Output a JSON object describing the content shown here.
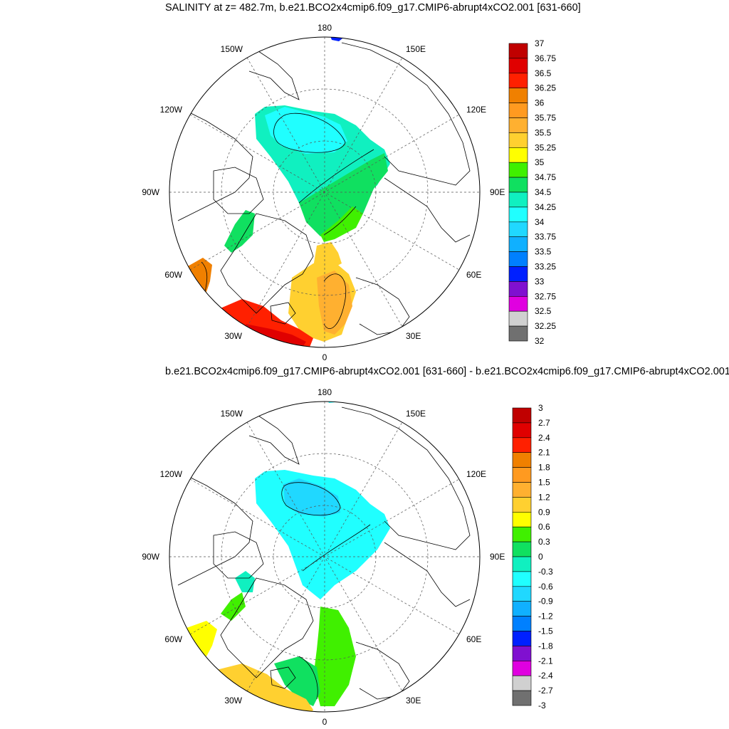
{
  "panel_top": {
    "title": "SALINITY at z= 482.7m, b.e21.BCO2x4cmip6.f09_g17.CMIP6-abrupt4xCO2.001 [631-660]",
    "lon_labels": [
      "180",
      "150E",
      "120E",
      "90E",
      "60E",
      "30E",
      "0",
      "30W",
      "60W",
      "90W",
      "120W",
      "150W"
    ],
    "colorbar_labels": [
      "37",
      "36.75",
      "36.5",
      "36.25",
      "36",
      "35.75",
      "35.5",
      "35.25",
      "35",
      "34.75",
      "34.5",
      "34.25",
      "34",
      "33.75",
      "33.5",
      "33.25",
      "33",
      "32.75",
      "32.5",
      "32.25",
      "32"
    ],
    "colorbar_colors": [
      "#c00000",
      "#e00000",
      "#ff2000",
      "#f08000",
      "#ff9a20",
      "#ffb030",
      "#ffd030",
      "#ffff00",
      "#40f000",
      "#10e060",
      "#10f0c0",
      "#20ffff",
      "#20d8ff",
      "#10b0ff",
      "#0080ff",
      "#0020ff",
      "#8010d0",
      "#e000e0",
      "#d0d0d0",
      "#707070"
    ]
  },
  "panel_bottom": {
    "title": "b.e21.BCO2x4cmip6.f09_g17.CMIP6-abrupt4xCO2.001 [631-660] - b.e21.BCO2x4cmip6.f09_g17.CMIP6-abrupt4xCO2.001",
    "lon_labels": [
      "180",
      "150E",
      "120E",
      "90E",
      "60E",
      "30E",
      "0",
      "30W",
      "60W",
      "90W",
      "120W",
      "150W"
    ],
    "colorbar_labels": [
      "3",
      "2.7",
      "2.4",
      "2.1",
      "1.8",
      "1.5",
      "1.2",
      "0.9",
      "0.6",
      "0.3",
      "0",
      "-0.3",
      "-0.6",
      "-0.9",
      "-1.2",
      "-1.5",
      "-1.8",
      "-2.1",
      "-2.4",
      "-2.7",
      "-3"
    ],
    "colorbar_colors": [
      "#c00000",
      "#e00000",
      "#ff2000",
      "#f08000",
      "#ff9a20",
      "#ffb030",
      "#ffd030",
      "#ffff00",
      "#40f000",
      "#10e060",
      "#10f0c0",
      "#20ffff",
      "#20d8ff",
      "#10b0ff",
      "#0080ff",
      "#0020ff",
      "#8010d0",
      "#e000e0",
      "#d0d0d0",
      "#707070"
    ]
  },
  "colors": {
    "land_line": "#000000",
    "grid_line": "#555555",
    "background": "#ffffff"
  }
}
